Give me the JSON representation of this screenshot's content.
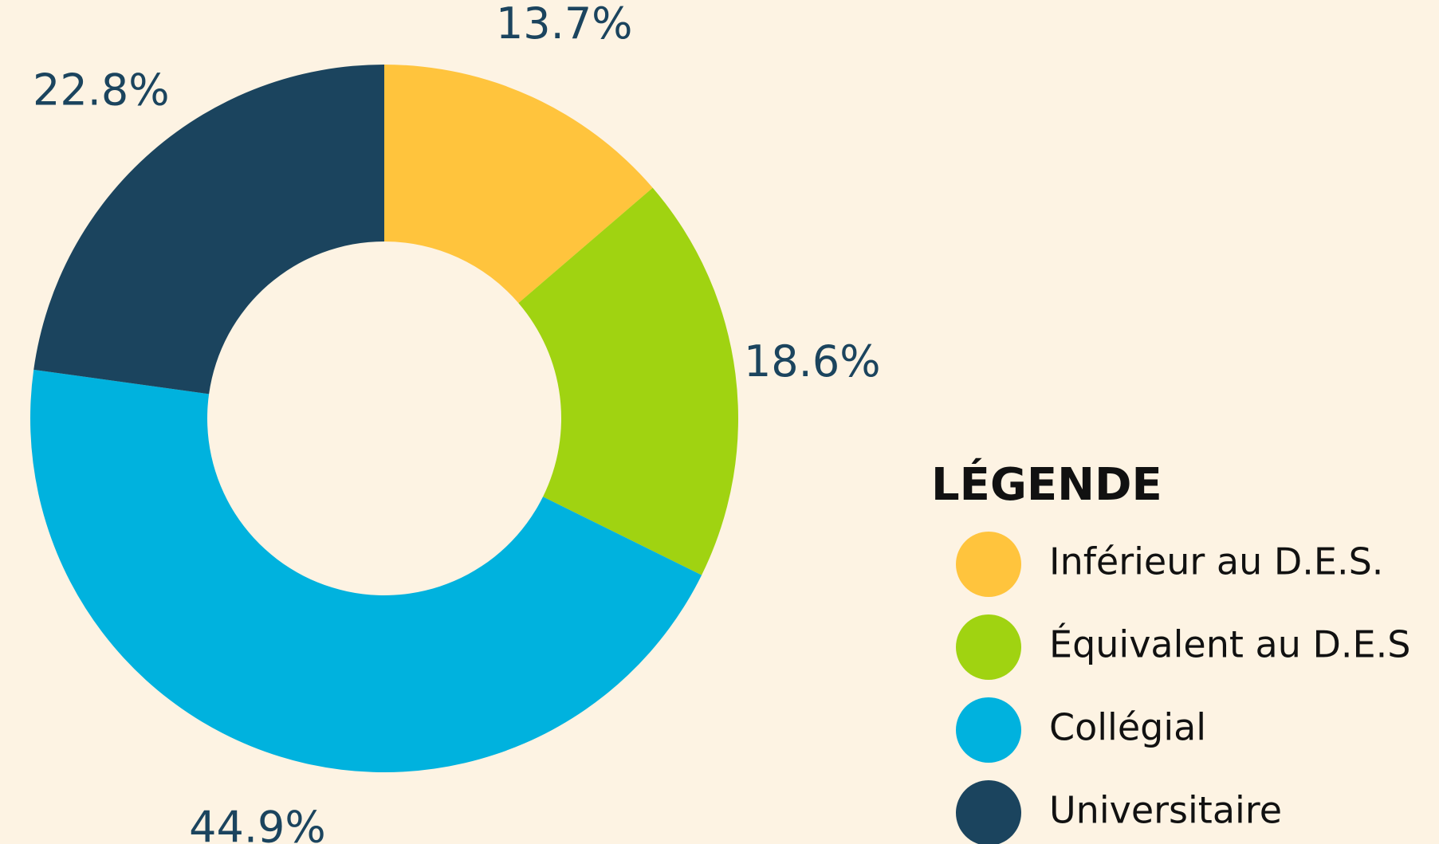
{
  "chart_data": {
    "type": "donut",
    "categories": [
      "Inférieur au D.E.S.",
      "Équivalent au D.E.S",
      "Collégial",
      "Universitaire"
    ],
    "values": [
      13.7,
      18.6,
      44.9,
      22.8
    ],
    "value_labels": [
      "13.7%",
      "18.6%",
      "44.9%",
      "22.8%"
    ],
    "colors": [
      "#ffc43d",
      "#a0d311",
      "#00b2de",
      "#1b445e"
    ],
    "legend_title": "LÉGENDE"
  }
}
